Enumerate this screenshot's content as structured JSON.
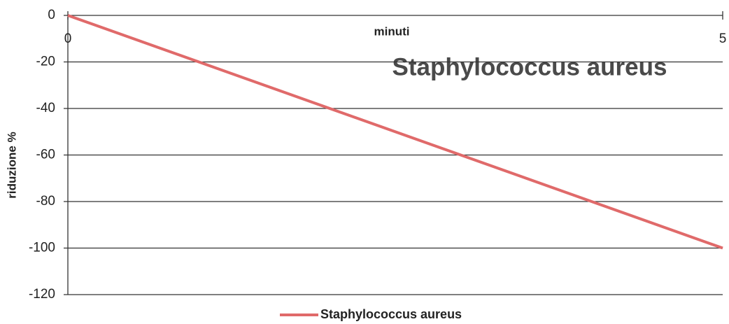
{
  "chart_data": {
    "type": "line",
    "title": "Staphylococcus aureus",
    "x_label": "minuti",
    "y_label": "riduzione %",
    "x": [
      0,
      5
    ],
    "series": [
      {
        "name": "Staphylococcus aureus",
        "color": "#e06a6a",
        "values": [
          0,
          -100
        ]
      }
    ],
    "xlim": [
      0,
      5
    ],
    "xticks": [
      0,
      5
    ],
    "ylim": [
      -120,
      0
    ],
    "yticks": [
      0,
      -20,
      -40,
      -60,
      -80,
      -100,
      -120
    ],
    "grid": true,
    "legend": "bottom"
  }
}
